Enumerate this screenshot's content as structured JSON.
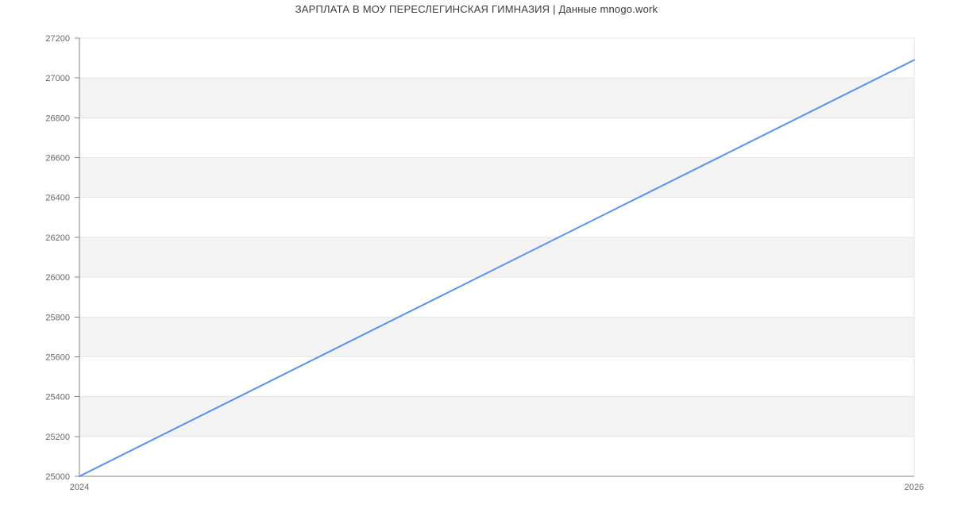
{
  "title": "ЗАРПЛАТА В МОУ ПЕРЕСЛЕГИНСКАЯ ГИМНАЗИЯ | Данные mnogo.work",
  "chart_data": {
    "type": "line",
    "title": "ЗАРПЛАТА В МОУ ПЕРЕСЛЕГИНСКАЯ ГИМНАЗИЯ | Данные mnogo.work",
    "x": [
      2024,
      2026
    ],
    "x_tick_labels": [
      "2024",
      "2026"
    ],
    "values": [
      25000,
      27090
    ],
    "xlim": [
      2024,
      2026
    ],
    "ylim": [
      25000,
      27200
    ],
    "y_ticks": [
      25000,
      25200,
      25400,
      25600,
      25800,
      26000,
      26200,
      26400,
      26600,
      26800,
      27000,
      27200
    ],
    "xlabel": "",
    "ylabel": "",
    "grid": true,
    "legend_position": "none",
    "alternating_bands": true,
    "markers": false,
    "colors": {
      "line": "#5b8ff0",
      "band": "#f3f3f3",
      "gridline": "#e6e6e6",
      "axis_line": "#858585",
      "tick_label": "#666666",
      "title_text": "#3c3c3c",
      "background": "#ffffff"
    }
  }
}
